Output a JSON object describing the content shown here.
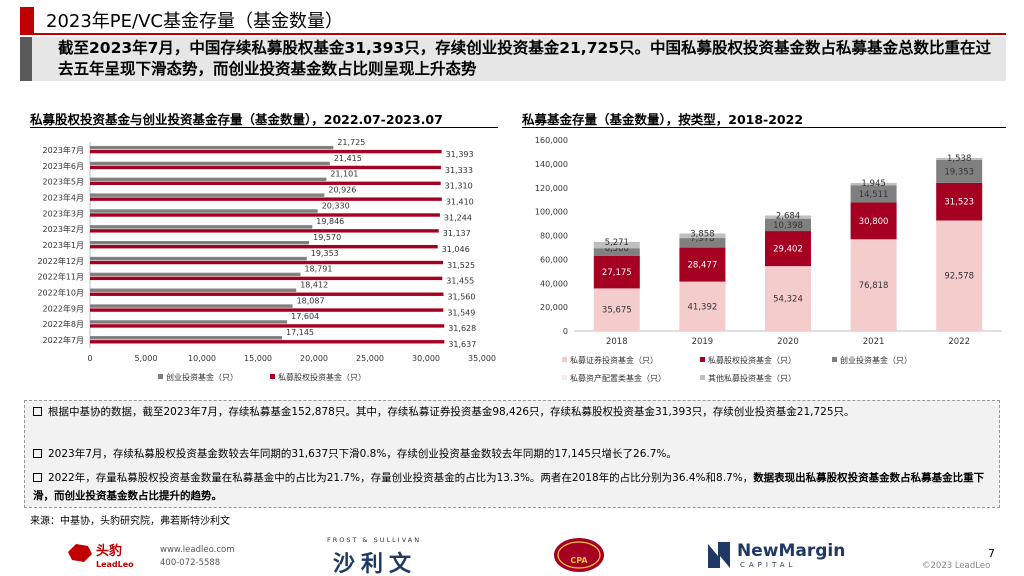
{
  "header": {
    "title": "2023年PE/VC基金存量（基金数量）",
    "lead": "截至2023年7月，中国存续私募股权基金31,393只，存续创业投资基金21,725只。中国私募股权投资基金数占私募基金总数比重在过去五年呈现下滑态势，而创业投资基金数占比则呈现上升态势"
  },
  "left_panel": {
    "title": "私募股权投资基金与创业投资基金存量（基金数量），2022.07-2023.07"
  },
  "right_panel": {
    "title": "私募基金存量（基金数量），按类型，2018-2022"
  },
  "chart_data": [
    {
      "type": "bar",
      "orientation": "horizontal",
      "categories": [
        "2023年7月",
        "2023年6月",
        "2023年5月",
        "2023年4月",
        "2023年3月",
        "2023年2月",
        "2023年1月",
        "2022年12月",
        "2022年11月",
        "2022年10月",
        "2022年9月",
        "2022年8月",
        "2022年7月"
      ],
      "series": [
        {
          "name": "创业投资基金（只）",
          "color": "#808080",
          "values": [
            21725,
            21415,
            21101,
            20926,
            20330,
            19846,
            19570,
            19353,
            18791,
            18412,
            18087,
            17604,
            17145
          ]
        },
        {
          "name": "私募股权投资基金（只）",
          "color": "#a50021",
          "values": [
            31393,
            31333,
            31310,
            31410,
            31244,
            31137,
            31046,
            31525,
            31455,
            31560,
            31549,
            31628,
            31637
          ]
        }
      ],
      "xlim": [
        0,
        35000
      ],
      "xticks": [
        0,
        5000,
        10000,
        15000,
        20000,
        25000,
        30000,
        35000
      ],
      "xtick_labels": [
        "0",
        "5,000",
        "10,000",
        "15,000",
        "20,000",
        "25,000",
        "30,000",
        "35,000"
      ],
      "legend": "bottom"
    },
    {
      "type": "bar",
      "stacked": true,
      "categories": [
        "2018",
        "2019",
        "2020",
        "2021",
        "2022"
      ],
      "series": [
        {
          "name": "私募证券投资基金（只）",
          "color": "#f4cccc",
          "values": [
            35675,
            41392,
            54324,
            76818,
            92578
          ]
        },
        {
          "name": "私募股权投资基金（只）",
          "color": "#a50021",
          "values": [
            27175,
            28477,
            29402,
            30800,
            31523
          ]
        },
        {
          "name": "创业投资基金（只）",
          "color": "#808080",
          "values": [
            6508,
            7978,
            10398,
            14511,
            19353
          ]
        },
        {
          "name": "私募资产配置类基金（只）",
          "color": "#fde9e7",
          "values": [
            null,
            null,
            null,
            null,
            null
          ]
        },
        {
          "name": "其他私募投资基金（只）",
          "color": "#bfbfbf",
          "values": [
            5271,
            3858,
            2684,
            1945,
            1538
          ]
        }
      ],
      "ylim": [
        0,
        160000
      ],
      "yticks": [
        0,
        20000,
        40000,
        60000,
        80000,
        100000,
        120000,
        140000,
        160000
      ],
      "ytick_labels": [
        "0",
        "20,000",
        "40,000",
        "60,000",
        "80,000",
        "100,000",
        "120,000",
        "140,000",
        "160,000"
      ],
      "legend": "bottom"
    }
  ],
  "bullets": [
    {
      "text": "根据中基协的数据，截至2023年7月，存续私募基金152,878只。其中，存续私募证券投资基金98,426只，存续私募股权投资基金31,393只，存续创业投资基金21,725只。"
    },
    {
      "text": "2023年7月，存续私募股权投资基金数较去年同期的31,637只下滑0.8%，存续创业投资基金数较去年同期的17,145只增长了26.7%。"
    },
    {
      "text": "2022年，存量私募股权投资基金数量在私募基金中的占比为21.7%，存量创业投资基金的占比为13.3%。两者在2018年的占比分别为36.4%和8.7%，",
      "bold": "数据表现出私募股权投资基金数占私募基金比重下滑，而创业投资基金数占比提升的趋势。"
    }
  ],
  "source": "来源：中基协，头豹研究院，弗若斯特沙利文",
  "footer": {
    "leadleo_cn": "头豹",
    "leadleo_en": "LeadLeo",
    "leadleo_site": "www.leadleo.com",
    "leadleo_phone": "400-072-5588",
    "fs_top": "FROST & SULLIVAN",
    "fs_cn": "沙利文",
    "cpa_text": "CPA",
    "newmargin": "NewMargin",
    "newmargin_sub": "CAPITAL",
    "page": "7",
    "copyright": "©2023 LeadLeo"
  }
}
